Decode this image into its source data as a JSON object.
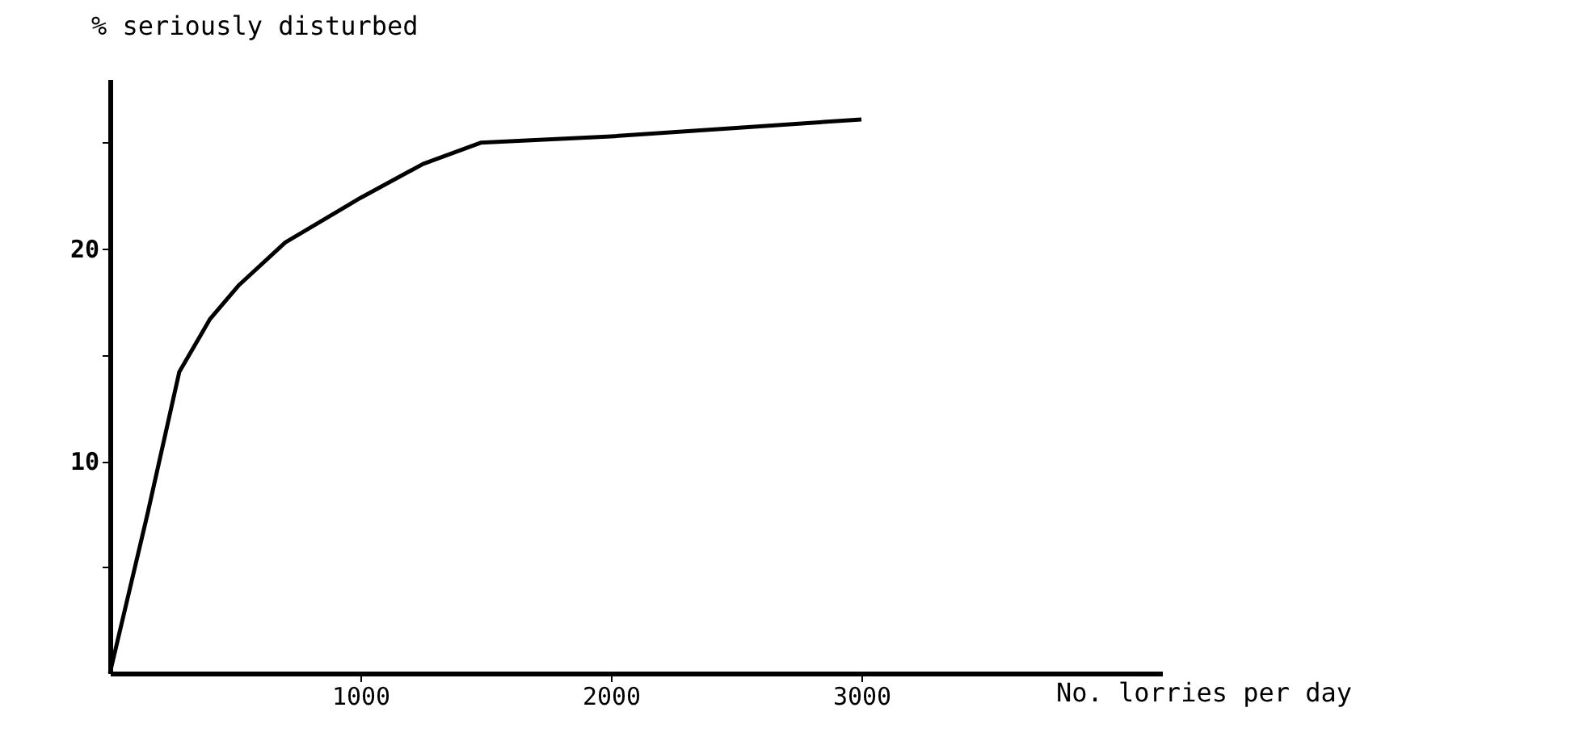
{
  "chart_data": {
    "type": "line",
    "xlabel": "No. lorries per day",
    "ylabel": "% seriously disturbed",
    "x": [
      0,
      150,
      277,
      400,
      516,
      700,
      1000,
      1250,
      1480,
      2000,
      2500,
      3000
    ],
    "series": [
      {
        "color": "#000000",
        "values": [
          0,
          7.5,
          14.2,
          16.7,
          18.3,
          20.3,
          22.4,
          24.0,
          25.0,
          25.3,
          25.7,
          26.1
        ]
      }
    ],
    "xlim": [
      0,
      4200
    ],
    "ylim": [
      0,
      28
    ],
    "xticks": [
      1000,
      2000,
      3000
    ],
    "yticks": [
      {
        "value": 5,
        "label": null
      },
      10,
      {
        "value": 15,
        "label": null
      },
      20,
      {
        "value": 25,
        "label": null
      }
    ],
    "grid": false,
    "marker": "none",
    "line_style": "solid"
  }
}
